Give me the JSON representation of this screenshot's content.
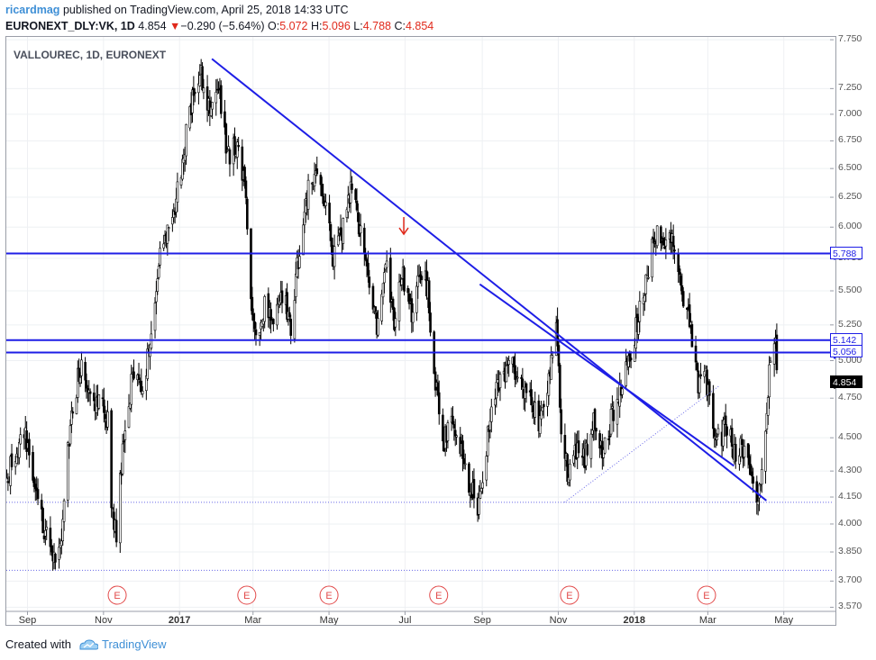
{
  "header": {
    "user": "ricardmag",
    "published": "published on TradingView.com, April 25, 2018 14:33 UTC",
    "symbol": "EURONEXT_DLY:VK, 1D",
    "last": "4.854",
    "change_arrow": "▼",
    "change": "−0.290 (−5.64%)",
    "o_label": "O:",
    "o_value": "5.072",
    "h_label": "H:",
    "h_value": "5.096",
    "l_label": "L:",
    "l_value": "4.788",
    "c_label": "C:",
    "c_value": "4.854"
  },
  "footer": {
    "created_with": "Created with",
    "brand": "TradingView"
  },
  "colors": {
    "trendline": "#1e1ee6",
    "price_label": "#1e1ee6",
    "last_price": "#000000",
    "earnings": "#e24a4a",
    "annotation_arrow": "#e0291b",
    "dotted": "#6a6ae8"
  },
  "chart_data": {
    "type": "candlestick",
    "title": "VALLOUREC, 1D, EURONEXT",
    "log_scale": true,
    "ylim": [
      3.55,
      7.78
    ],
    "xlim": [
      "2016-08-15",
      "2018-06-10"
    ],
    "y_ticks": [
      "7.750",
      "7.250",
      "7.000",
      "6.750",
      "6.500",
      "6.250",
      "6.000",
      "5.750",
      "5.500",
      "5.250",
      "5.000",
      "4.750",
      "4.500",
      "4.300",
      "4.150",
      "4.000",
      "3.850",
      "3.700",
      "3.570"
    ],
    "x_ticks": [
      {
        "date": "2016-09-01",
        "label": "Sep",
        "bold": false
      },
      {
        "date": "2016-11-01",
        "label": "Nov",
        "bold": false
      },
      {
        "date": "2017-01-01",
        "label": "2017",
        "bold": true
      },
      {
        "date": "2017-03-01",
        "label": "Mar",
        "bold": false
      },
      {
        "date": "2017-05-01",
        "label": "May",
        "bold": false
      },
      {
        "date": "2017-07-01",
        "label": "Jul",
        "bold": false
      },
      {
        "date": "2017-09-01",
        "label": "Sep",
        "bold": false
      },
      {
        "date": "2017-11-01",
        "label": "Nov",
        "bold": false
      },
      {
        "date": "2018-01-01",
        "label": "2018",
        "bold": true
      },
      {
        "date": "2018-03-01",
        "label": "Mar",
        "bold": false
      },
      {
        "date": "2018-05-01",
        "label": "May",
        "bold": false
      }
    ],
    "price_path": [
      [
        "2016-08-15",
        4.25
      ],
      [
        "2016-08-29",
        4.55
      ],
      [
        "2016-09-12",
        4.05
      ],
      [
        "2016-09-20",
        3.8
      ],
      [
        "2016-09-27",
        3.85
      ],
      [
        "2016-10-05",
        4.6
      ],
      [
        "2016-10-15",
        5.05
      ],
      [
        "2016-10-22",
        4.7
      ],
      [
        "2016-10-29",
        4.75
      ],
      [
        "2016-11-04",
        4.6
      ],
      [
        "2016-11-07",
        4.1
      ],
      [
        "2016-11-11",
        3.95
      ],
      [
        "2016-11-18",
        4.6
      ],
      [
        "2016-11-25",
        4.95
      ],
      [
        "2016-12-02",
        4.85
      ],
      [
        "2016-12-08",
        5.1
      ],
      [
        "2016-12-15",
        5.7
      ],
      [
        "2016-12-23",
        5.95
      ],
      [
        "2017-01-01",
        6.4
      ],
      [
        "2017-01-09",
        7.05
      ],
      [
        "2017-01-18",
        7.4
      ],
      [
        "2017-01-26",
        7.0
      ],
      [
        "2017-02-01",
        7.3
      ],
      [
        "2017-02-08",
        6.6
      ],
      [
        "2017-02-15",
        6.7
      ],
      [
        "2017-02-22",
        6.35
      ],
      [
        "2017-02-27",
        5.35
      ],
      [
        "2017-03-03",
        5.15
      ],
      [
        "2017-03-10",
        5.4
      ],
      [
        "2017-03-17",
        5.25
      ],
      [
        "2017-03-24",
        5.5
      ],
      [
        "2017-03-31",
        5.2
      ],
      [
        "2017-04-07",
        5.85
      ],
      [
        "2017-04-14",
        6.35
      ],
      [
        "2017-04-20",
        6.55
      ],
      [
        "2017-04-27",
        6.2
      ],
      [
        "2017-05-04",
        5.75
      ],
      [
        "2017-05-11",
        5.95
      ],
      [
        "2017-05-18",
        6.3
      ],
      [
        "2017-05-25",
        6.0
      ],
      [
        "2017-06-01",
        5.6
      ],
      [
        "2017-06-08",
        5.25
      ],
      [
        "2017-06-15",
        5.75
      ],
      [
        "2017-06-22",
        5.3
      ],
      [
        "2017-06-29",
        5.6
      ],
      [
        "2017-07-06",
        5.3
      ],
      [
        "2017-07-13",
        5.7
      ],
      [
        "2017-07-19",
        5.5
      ],
      [
        "2017-07-24",
        4.9
      ],
      [
        "2017-07-31",
        4.45
      ],
      [
        "2017-08-07",
        4.6
      ],
      [
        "2017-08-14",
        4.45
      ],
      [
        "2017-08-21",
        4.25
      ],
      [
        "2017-08-28",
        4.05
      ],
      [
        "2017-09-04",
        4.45
      ],
      [
        "2017-09-11",
        4.75
      ],
      [
        "2017-09-18",
        4.9
      ],
      [
        "2017-09-25",
        4.95
      ],
      [
        "2017-10-02",
        4.85
      ],
      [
        "2017-10-09",
        4.8
      ],
      [
        "2017-10-16",
        4.55
      ],
      [
        "2017-10-23",
        4.75
      ],
      [
        "2017-10-30",
        5.3
      ],
      [
        "2017-11-03",
        4.5
      ],
      [
        "2017-11-08",
        4.3
      ],
      [
        "2017-11-15",
        4.4
      ],
      [
        "2017-11-22",
        4.35
      ],
      [
        "2017-11-29",
        4.65
      ],
      [
        "2017-12-06",
        4.4
      ],
      [
        "2017-12-13",
        4.6
      ],
      [
        "2017-12-20",
        4.8
      ],
      [
        "2017-12-27",
        5.0
      ],
      [
        "2018-01-03",
        5.25
      ],
      [
        "2018-01-10",
        5.6
      ],
      [
        "2018-01-17",
        5.95
      ],
      [
        "2018-01-24",
        5.9
      ],
      [
        "2018-01-31",
        5.85
      ],
      [
        "2018-02-07",
        5.55
      ],
      [
        "2018-02-14",
        5.25
      ],
      [
        "2018-02-21",
        4.85
      ],
      [
        "2018-02-26",
        5.0
      ],
      [
        "2018-03-02",
        4.7
      ],
      [
        "2018-03-09",
        4.5
      ],
      [
        "2018-03-16",
        4.55
      ],
      [
        "2018-03-23",
        4.4
      ],
      [
        "2018-03-30",
        4.45
      ],
      [
        "2018-04-06",
        4.25
      ],
      [
        "2018-04-10",
        4.15
      ],
      [
        "2018-04-13",
        4.35
      ],
      [
        "2018-04-18",
        4.8
      ],
      [
        "2018-04-21",
        5.2
      ],
      [
        "2018-04-24",
        5.1
      ],
      [
        "2018-04-25",
        4.854
      ]
    ],
    "horizontal_levels": [
      {
        "name": "resistance",
        "price": 5.788,
        "label": "5.788"
      },
      {
        "name": "upper-support",
        "price": 5.142,
        "label": "5.142"
      },
      {
        "name": "lower-support",
        "price": 5.056,
        "label": "5.056"
      }
    ],
    "last_price": {
      "price": 4.854,
      "label": "4.854"
    },
    "trendlines": [
      {
        "name": "descending-trendline",
        "from": [
          "2017-01-27",
          7.55
        ],
        "to": [
          "2018-04-17",
          4.13
        ]
      },
      {
        "name": "lower-trendline",
        "from": [
          "2017-08-30",
          5.55
        ],
        "to": [
          "2018-03-22",
          4.33
        ]
      },
      {
        "name": "dotted-rising-trendline",
        "from": [
          "2017-11-06",
          4.12
        ],
        "to": [
          "2018-03-10",
          4.83
        ],
        "dashed": true
      }
    ],
    "dotted_levels": [
      {
        "price": 4.12
      },
      {
        "price": 3.755
      }
    ],
    "earnings_events": [
      {
        "date": "2016-11-12",
        "label": "E"
      },
      {
        "date": "2017-02-24",
        "label": "E"
      },
      {
        "date": "2017-05-01",
        "label": "E"
      },
      {
        "date": "2017-07-28",
        "label": "E"
      },
      {
        "date": "2017-11-10",
        "label": "E"
      },
      {
        "date": "2018-02-28",
        "label": "E"
      }
    ],
    "annotation_arrow": {
      "date": "2017-06-30",
      "price": 5.95
    }
  }
}
